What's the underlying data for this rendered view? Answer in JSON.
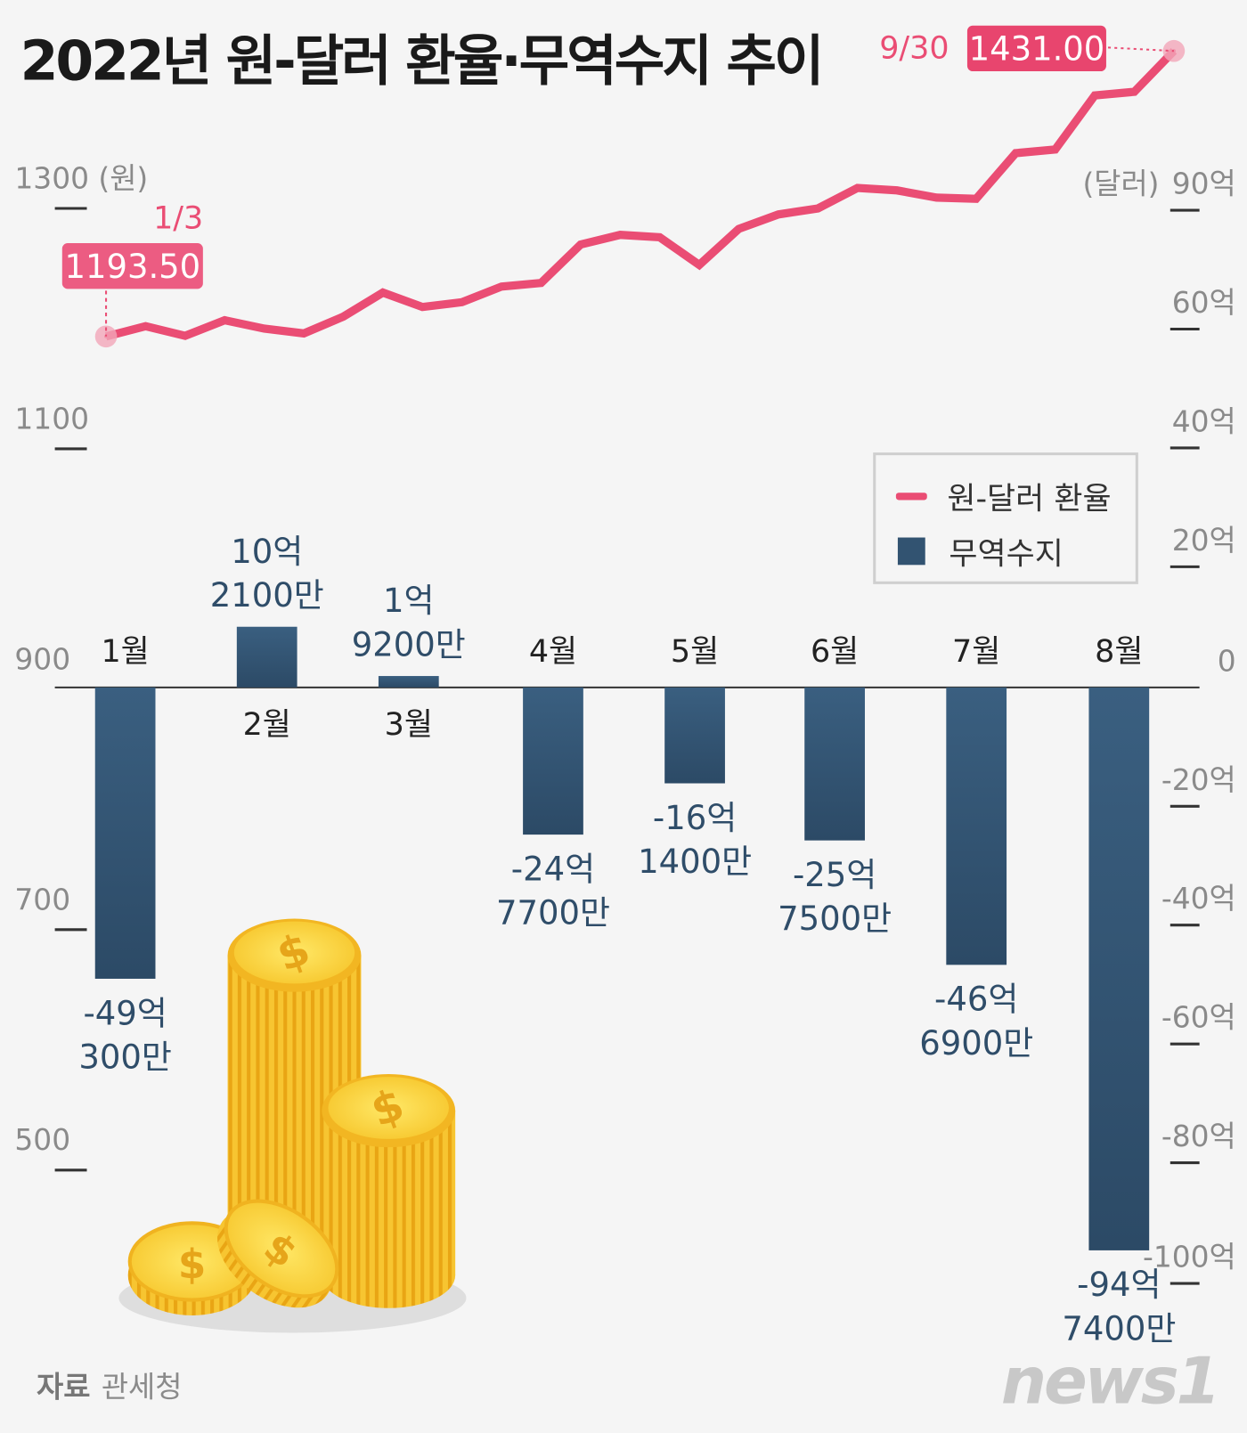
{
  "title": "2022년 원-달러 환율·무역수지 추이",
  "source": {
    "label": "자료",
    "value": "관세청"
  },
  "logo": "news1",
  "legend": {
    "line": "원-달러 환율",
    "bar": "무역수지"
  },
  "colors": {
    "line": "#ea4d74",
    "bar": "#325371",
    "badge": "#e8456e",
    "axis": "#333333"
  },
  "chart_data": [
    {
      "type": "line",
      "series_name": "원-달러 환율",
      "unit_label": "1300 (원)",
      "y_ticks": [
        {
          "value": 1300,
          "label": "1300 (원)"
        },
        {
          "value": 1100,
          "label": "1100"
        },
        {
          "value": 900,
          "label": "900"
        },
        {
          "value": 700,
          "label": "700"
        },
        {
          "value": 500,
          "label": "500"
        }
      ],
      "values": [
        1193.5,
        1202,
        1194,
        1207,
        1200,
        1196,
        1210,
        1230,
        1218,
        1222,
        1235,
        1238,
        1270,
        1278,
        1276,
        1253,
        1283,
        1295,
        1300,
        1317,
        1315,
        1309,
        1308,
        1346,
        1349,
        1394,
        1397,
        1431.0
      ],
      "annotations": [
        {
          "date": "1/3",
          "value": "1193.50"
        },
        {
          "date": "9/30",
          "value": "1431.00"
        }
      ]
    },
    {
      "type": "bar",
      "series_name": "무역수지",
      "unit_label": "(달러)",
      "y_ticks": [
        "90억",
        "60억",
        "40억",
        "20억",
        "0",
        "-20억",
        "-40억",
        "-60억",
        "-80억",
        "-100억"
      ],
      "categories": [
        "1월",
        "2월",
        "3월",
        "4월",
        "5월",
        "6월",
        "7월",
        "8월"
      ],
      "values": [
        -49.03,
        10.21,
        1.92,
        -24.77,
        -16.14,
        -25.75,
        -46.69,
        -94.74
      ],
      "value_unit": "억 달러",
      "data_labels": [
        [
          "-49억",
          "300만"
        ],
        [
          "10억",
          "2100만"
        ],
        [
          "1억",
          "9200만"
        ],
        [
          "-24억",
          "7700만"
        ],
        [
          "-16억",
          "1400만"
        ],
        [
          "-25억",
          "7500만"
        ],
        [
          "-46억",
          "6900만"
        ],
        [
          "-94억",
          "7400만"
        ]
      ]
    }
  ]
}
